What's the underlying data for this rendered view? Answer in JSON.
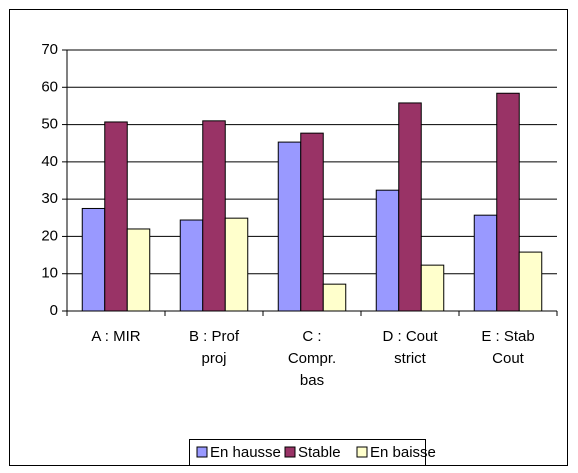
{
  "chart_data": {
    "type": "bar",
    "categories": [
      "A : MIR",
      "B : Prof proj",
      "C : Compr. bas",
      "D : Cout strict",
      "E : Stab Cout"
    ],
    "series": [
      {
        "name": "En hausse",
        "color": "#9999ff",
        "values": [
          27.5,
          24.4,
          45.3,
          32.4,
          25.7
        ]
      },
      {
        "name": "Stable",
        "color": "#993366",
        "values": [
          50.7,
          51,
          47.7,
          55.8,
          58.4
        ]
      },
      {
        "name": "En baisse",
        "color": "#ffffcc",
        "values": [
          22,
          24.9,
          7.2,
          12.3,
          15.8
        ]
      }
    ],
    "ylim": [
      0,
      70
    ],
    "yticks": [
      0,
      10,
      20,
      30,
      40,
      50,
      60,
      70
    ],
    "grid": true,
    "legend": "bottom"
  }
}
